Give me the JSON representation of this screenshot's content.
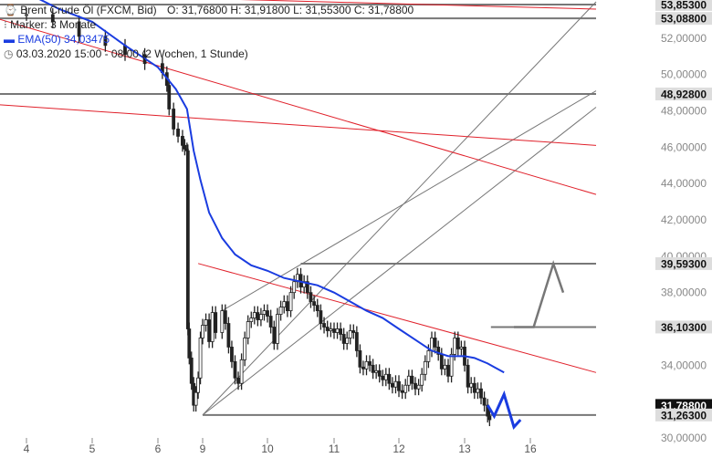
{
  "legend": {
    "instrument": "Brent Crude Öl (FXCM, Bid)",
    "ohlc": "O: 31,76800  H: 31,91800  L: 31,55300  C: 31,78800",
    "marker": "Marker: 3 Monate",
    "ema": "EMA(50)  34,03475",
    "period": "03.03.2020 15:00 - 08:00  (2 Wochen, 1 Stunde)"
  },
  "colors": {
    "price": "#222222",
    "ema": "#1a3ce0",
    "trend_red": "#e0202a",
    "level_grey": "#777777",
    "projection": "#1a3ce0",
    "label_box": "#dddddd",
    "current_box": "#111111"
  },
  "chart_data": {
    "type": "candlestick",
    "y_ticks": [
      "52,00000",
      "50,00000",
      "48,00000",
      "46,00000",
      "44,00000",
      "42,00000",
      "40,00000",
      "38,00000",
      "34,00000",
      "30,00000"
    ],
    "y_tick_values": [
      52,
      50,
      48,
      46,
      44,
      42,
      40,
      38,
      34,
      30
    ],
    "ylim": [
      30,
      54.1
    ],
    "x_ticks": [
      "4",
      "5",
      "6",
      "9",
      "10",
      "11",
      "12",
      "13",
      "16"
    ],
    "x_tick_positions": [
      0,
      1,
      2,
      3,
      4,
      5,
      6,
      7,
      8
    ],
    "level_labels": [
      {
        "text": "53,85300",
        "value": 53.853,
        "style": "grey"
      },
      {
        "text": "53,08800",
        "value": 53.088,
        "style": "grey"
      },
      {
        "text": "48,92800",
        "value": 48.928,
        "style": "grey"
      },
      {
        "text": "39,59300",
        "value": 39.593,
        "style": "grey"
      },
      {
        "text": "36,10300",
        "value": 36.103,
        "style": "grey"
      },
      {
        "text": "31,78800",
        "value": 31.788,
        "style": "current"
      },
      {
        "text": "31,26300",
        "value": 31.263,
        "style": "grey"
      }
    ],
    "price_close": [
      [
        0.0,
        53.3
      ],
      [
        0.4,
        52.9
      ],
      [
        0.8,
        52.1
      ],
      [
        1.2,
        51.6
      ],
      [
        1.5,
        51.1
      ],
      [
        1.8,
        50.6
      ],
      [
        2.1,
        50.1
      ],
      [
        2.2,
        49.4
      ],
      [
        2.25,
        48.1
      ],
      [
        2.35,
        47.0
      ],
      [
        2.45,
        46.6
      ],
      [
        2.55,
        46.1
      ],
      [
        2.6,
        45.9
      ],
      [
        2.65,
        45.8
      ],
      [
        2.67,
        36.0
      ],
      [
        2.7,
        34.4
      ],
      [
        2.75,
        33.0
      ],
      [
        2.8,
        31.8
      ],
      [
        2.85,
        32.5
      ],
      [
        2.9,
        33.3
      ],
      [
        2.95,
        35.5
      ],
      [
        3.0,
        36.2
      ],
      [
        3.05,
        36.5
      ],
      [
        3.1,
        35.3
      ],
      [
        3.15,
        36.9
      ],
      [
        3.2,
        35.8
      ],
      [
        3.3,
        37.0
      ],
      [
        3.35,
        36.3
      ],
      [
        3.4,
        35.0
      ],
      [
        3.45,
        34.2
      ],
      [
        3.5,
        33.3
      ],
      [
        3.55,
        33.0
      ],
      [
        3.6,
        34.3
      ],
      [
        3.65,
        35.5
      ],
      [
        3.7,
        36.4
      ],
      [
        3.75,
        36.6
      ],
      [
        3.8,
        36.9
      ],
      [
        3.85,
        36.5
      ],
      [
        3.9,
        36.8
      ],
      [
        3.95,
        37.0
      ],
      [
        4.0,
        36.7
      ],
      [
        4.05,
        36.1
      ],
      [
        4.1,
        35.2
      ],
      [
        4.15,
        36.8
      ],
      [
        4.2,
        37.2
      ],
      [
        4.25,
        37.5
      ],
      [
        4.3,
        37.0
      ],
      [
        4.35,
        38.0
      ],
      [
        4.4,
        38.6
      ],
      [
        4.45,
        39.0
      ],
      [
        4.5,
        38.3
      ],
      [
        4.55,
        38.6
      ],
      [
        4.6,
        38.0
      ],
      [
        4.65,
        37.5
      ],
      [
        4.7,
        37.3
      ],
      [
        4.75,
        37.0
      ],
      [
        4.8,
        36.3
      ],
      [
        4.85,
        36.1
      ],
      [
        4.9,
        35.9
      ],
      [
        4.95,
        36.0
      ],
      [
        5.0,
        35.8
      ],
      [
        5.05,
        36.0
      ],
      [
        5.1,
        35.7
      ],
      [
        5.15,
        35.2
      ],
      [
        5.2,
        35.5
      ],
      [
        5.25,
        35.9
      ],
      [
        5.3,
        35.8
      ],
      [
        5.35,
        34.8
      ],
      [
        5.4,
        33.9
      ],
      [
        5.45,
        33.8
      ],
      [
        5.5,
        34.2
      ],
      [
        5.55,
        34.0
      ],
      [
        5.6,
        33.6
      ],
      [
        5.65,
        33.7
      ],
      [
        5.7,
        33.4
      ],
      [
        5.75,
        33.2
      ],
      [
        5.8,
        33.5
      ],
      [
        5.85,
        33.0
      ],
      [
        5.9,
        32.8
      ],
      [
        5.95,
        33.1
      ],
      [
        6.0,
        32.6
      ],
      [
        6.05,
        32.5
      ],
      [
        6.1,
        32.9
      ],
      [
        6.15,
        33.4
      ],
      [
        6.2,
        33.0
      ],
      [
        6.25,
        32.7
      ],
      [
        6.3,
        32.9
      ],
      [
        6.35,
        33.5
      ],
      [
        6.4,
        34.2
      ],
      [
        6.45,
        34.8
      ],
      [
        6.5,
        35.5
      ],
      [
        6.55,
        35.0
      ],
      [
        6.6,
        34.6
      ],
      [
        6.65,
        33.8
      ],
      [
        6.7,
        34.0
      ],
      [
        6.75,
        33.4
      ],
      [
        6.8,
        34.6
      ],
      [
        6.85,
        35.5
      ],
      [
        6.9,
        34.9
      ],
      [
        6.95,
        35.0
      ],
      [
        7.0,
        34.0
      ],
      [
        7.05,
        32.8
      ],
      [
        7.1,
        33.0
      ],
      [
        7.15,
        32.5
      ],
      [
        7.2,
        32.7
      ],
      [
        7.25,
        32.2
      ],
      [
        7.3,
        31.8
      ],
      [
        7.35,
        31.2
      ],
      [
        7.38,
        31.0
      ]
    ],
    "ema50": [
      [
        0.0,
        54.5
      ],
      [
        0.5,
        53.6
      ],
      [
        1.0,
        52.9
      ],
      [
        1.5,
        51.6
      ],
      [
        2.0,
        50.4
      ],
      [
        2.4,
        49.2
      ],
      [
        2.65,
        48.1
      ],
      [
        2.8,
        45.8
      ],
      [
        2.95,
        44.2
      ],
      [
        3.1,
        42.4
      ],
      [
        3.3,
        41.0
      ],
      [
        3.5,
        40.1
      ],
      [
        3.75,
        39.5
      ],
      [
        4.0,
        39.2
      ],
      [
        4.25,
        38.8
      ],
      [
        4.5,
        38.6
      ],
      [
        4.75,
        38.4
      ],
      [
        5.0,
        38.0
      ],
      [
        5.25,
        37.5
      ],
      [
        5.5,
        37.0
      ],
      [
        5.75,
        36.6
      ],
      [
        6.0,
        36.0
      ],
      [
        6.25,
        35.4
      ],
      [
        6.5,
        34.8
      ],
      [
        6.75,
        34.5
      ],
      [
        7.0,
        34.5
      ],
      [
        7.15,
        34.4
      ],
      [
        7.35,
        34.1
      ],
      [
        7.45,
        33.9
      ],
      [
        7.6,
        33.6
      ]
    ],
    "red_lines": [
      [
        [
          2.9,
          39.6
        ],
        [
          9.0,
          33.6
        ]
      ],
      [
        [
          -1.5,
          54.2
        ],
        [
          9.0,
          43.4
        ]
      ],
      [
        [
          -1.5,
          48.6
        ],
        [
          9.0,
          46.1
        ]
      ],
      [
        [
          2.7,
          54.2
        ],
        [
          9.0,
          53.6
        ]
      ]
    ],
    "grey_lines": [
      [
        [
          3.0,
          31.26
        ],
        [
          9.0,
          54.0
        ]
      ],
      [
        [
          3.0,
          31.26
        ],
        [
          9.0,
          48.2
        ]
      ],
      [
        [
          3.3,
          37.0
        ],
        [
          9.0,
          49.1
        ]
      ],
      [
        [
          -1.5,
          48.93
        ],
        [
          9.0,
          48.93
        ]
      ],
      [
        [
          -1.5,
          53.85
        ],
        [
          9.0,
          53.85
        ]
      ],
      [
        [
          -1.5,
          53.09
        ],
        [
          9.0,
          53.09
        ]
      ],
      [
        [
          3.0,
          31.26
        ],
        [
          9.0,
          31.26
        ]
      ],
      [
        [
          4.5,
          39.59
        ],
        [
          9.0,
          39.59
        ]
      ],
      [
        [
          7.4,
          36.1
        ],
        [
          9.0,
          36.1
        ]
      ]
    ],
    "projection_up": [
      [
        7.75,
        36.1
      ],
      [
        8.05,
        36.1
      ],
      [
        8.35,
        39.59
      ],
      [
        8.5,
        38.0
      ]
    ],
    "projection_down": [
      [
        7.35,
        31.8
      ],
      [
        7.45,
        31.2
      ],
      [
        7.6,
        32.4
      ],
      [
        7.75,
        30.6
      ],
      [
        7.85,
        31.0
      ]
    ]
  }
}
